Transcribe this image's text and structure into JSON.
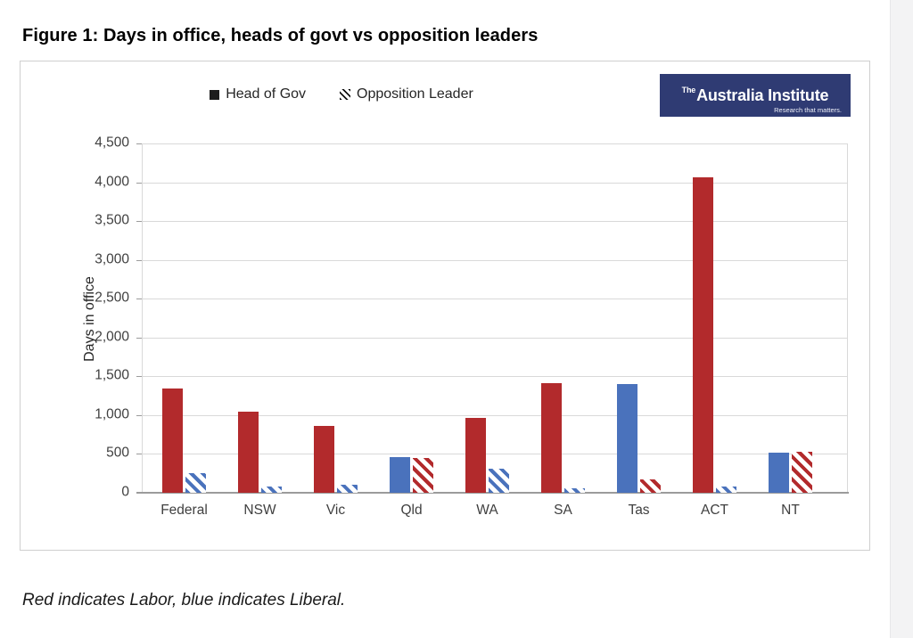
{
  "header": {
    "title": "Figure 1: Days in office, heads of govt vs opposition leaders"
  },
  "logo": {
    "prefix": "The",
    "name": "Australia Institute",
    "tagline": "Research that matters.",
    "background": "#2f3b73"
  },
  "footnote": {
    "text": "Red indicates Labor, blue indicates Liberal."
  },
  "chart_data": {
    "type": "bar",
    "title": "Figure 1: Days in office, heads of govt vs opposition leaders",
    "ylabel": "Days in office",
    "xlabel": "",
    "ylim": [
      0,
      4500
    ],
    "ytick_step": 500,
    "yticks": [
      "0",
      "500",
      "1,000",
      "1,500",
      "2,000",
      "2,500",
      "3,000",
      "3,500",
      "4,000",
      "4,500"
    ],
    "grid": "horizontal",
    "legend_position": "top-center",
    "categories": [
      "Federal",
      "NSW",
      "Vic",
      "Qld",
      "WA",
      "SA",
      "Tas",
      "ACT",
      "NT"
    ],
    "series": [
      {
        "name": "Head of Gov",
        "style": "solid",
        "values": [
          1340,
          1050,
          860,
          460,
          970,
          1410,
          1400,
          4060,
          515
        ],
        "party": [
          "red",
          "red",
          "red",
          "blue",
          "red",
          "red",
          "blue",
          "red",
          "blue"
        ]
      },
      {
        "name": "Opposition Leader",
        "style": "hatched",
        "values": [
          250,
          80,
          100,
          450,
          310,
          55,
          170,
          80,
          530
        ],
        "party": [
          "blue",
          "blue",
          "blue",
          "red",
          "blue",
          "blue",
          "red",
          "blue",
          "red"
        ]
      }
    ],
    "party_colors": {
      "red": "#b22a2c",
      "blue": "#4a72bc"
    },
    "note": "Red indicates Labor, blue indicates Liberal."
  }
}
